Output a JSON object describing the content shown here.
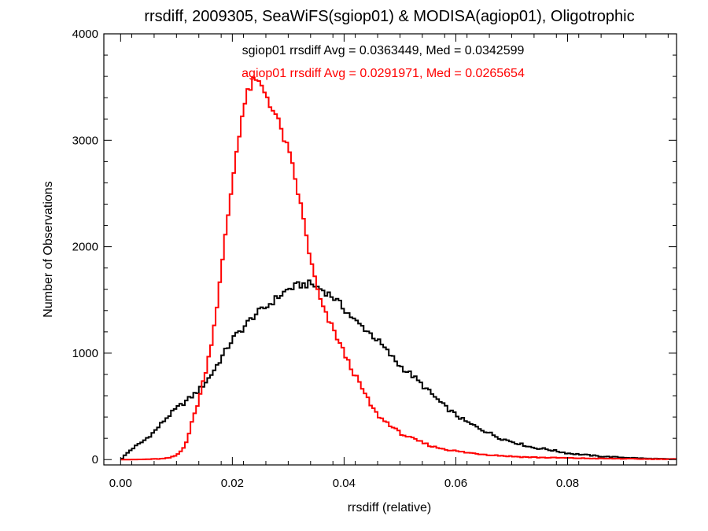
{
  "chart_data": {
    "type": "line",
    "title": "rrsdiff, 2009305, SeaWiFS(sgiop01) & MODISA(agiop01), Oligotrophic",
    "xlabel": "rrsdiff (relative)",
    "ylabel": "Number of Observations",
    "xlim": [
      -0.003,
      0.0995
    ],
    "ylim": [
      -50,
      4000
    ],
    "x_ticks": [
      0.0,
      0.02,
      0.04,
      0.06,
      0.08
    ],
    "x_tick_labels": [
      "0.00",
      "0.02",
      "0.04",
      "0.06",
      "0.08"
    ],
    "y_ticks": [
      0,
      1000,
      2000,
      3000,
      4000
    ],
    "y_tick_labels": [
      "0",
      "1000",
      "2000",
      "3000",
      "4000"
    ],
    "bin_width": 0.0005,
    "annotations": [
      {
        "text": "sgiop01 rrsdiff Avg = 0.0363449, Med = 0.0342599",
        "color": "#000000"
      },
      {
        "text": "agiop01 rrsdiff Avg = 0.0291971, Med = 0.0265654",
        "color": "#ff0000"
      }
    ],
    "series": [
      {
        "name": "sgiop01",
        "color": "#000000",
        "points": [
          [
            0.0,
            0
          ],
          [
            0.002,
            100
          ],
          [
            0.004,
            170
          ],
          [
            0.006,
            260
          ],
          [
            0.008,
            380
          ],
          [
            0.01,
            480
          ],
          [
            0.012,
            560
          ],
          [
            0.014,
            650
          ],
          [
            0.016,
            780
          ],
          [
            0.018,
            950
          ],
          [
            0.02,
            1130
          ],
          [
            0.022,
            1240
          ],
          [
            0.024,
            1360
          ],
          [
            0.026,
            1430
          ],
          [
            0.028,
            1520
          ],
          [
            0.03,
            1600
          ],
          [
            0.032,
            1640
          ],
          [
            0.034,
            1650
          ],
          [
            0.036,
            1600
          ],
          [
            0.038,
            1530
          ],
          [
            0.04,
            1420
          ],
          [
            0.042,
            1300
          ],
          [
            0.044,
            1220
          ],
          [
            0.046,
            1120
          ],
          [
            0.048,
            1000
          ],
          [
            0.05,
            880
          ],
          [
            0.052,
            800
          ],
          [
            0.054,
            700
          ],
          [
            0.056,
            600
          ],
          [
            0.058,
            500
          ],
          [
            0.06,
            420
          ],
          [
            0.062,
            350
          ],
          [
            0.064,
            300
          ],
          [
            0.066,
            250
          ],
          [
            0.068,
            200
          ],
          [
            0.07,
            170
          ],
          [
            0.072,
            140
          ],
          [
            0.074,
            110
          ],
          [
            0.076,
            100
          ],
          [
            0.078,
            80
          ],
          [
            0.08,
            60
          ],
          [
            0.082,
            50
          ],
          [
            0.084,
            40
          ],
          [
            0.086,
            30
          ],
          [
            0.088,
            25
          ],
          [
            0.09,
            20
          ],
          [
            0.092,
            15
          ],
          [
            0.094,
            10
          ],
          [
            0.096,
            8
          ],
          [
            0.098,
            5
          ]
        ]
      },
      {
        "name": "agiop01",
        "color": "#ff0000",
        "points": [
          [
            0.0,
            0
          ],
          [
            0.002,
            0
          ],
          [
            0.004,
            2
          ],
          [
            0.006,
            5
          ],
          [
            0.008,
            10
          ],
          [
            0.009,
            20
          ],
          [
            0.01,
            40
          ],
          [
            0.011,
            90
          ],
          [
            0.012,
            200
          ],
          [
            0.013,
            390
          ],
          [
            0.014,
            560
          ],
          [
            0.015,
            780
          ],
          [
            0.016,
            1020
          ],
          [
            0.017,
            1350
          ],
          [
            0.018,
            1750
          ],
          [
            0.019,
            2200
          ],
          [
            0.02,
            2600
          ],
          [
            0.021,
            3000
          ],
          [
            0.022,
            3300
          ],
          [
            0.023,
            3480
          ],
          [
            0.024,
            3560
          ],
          [
            0.025,
            3520
          ],
          [
            0.026,
            3440
          ],
          [
            0.027,
            3320
          ],
          [
            0.028,
            3200
          ],
          [
            0.029,
            3060
          ],
          [
            0.03,
            2900
          ],
          [
            0.031,
            2700
          ],
          [
            0.032,
            2450
          ],
          [
            0.033,
            2180
          ],
          [
            0.034,
            1880
          ],
          [
            0.035,
            1640
          ],
          [
            0.036,
            1450
          ],
          [
            0.037,
            1330
          ],
          [
            0.038,
            1230
          ],
          [
            0.039,
            1120
          ],
          [
            0.04,
            1000
          ],
          [
            0.041,
            890
          ],
          [
            0.042,
            790
          ],
          [
            0.043,
            690
          ],
          [
            0.044,
            590
          ],
          [
            0.045,
            490
          ],
          [
            0.046,
            420
          ],
          [
            0.047,
            370
          ],
          [
            0.048,
            340
          ],
          [
            0.049,
            290
          ],
          [
            0.05,
            250
          ],
          [
            0.052,
            200
          ],
          [
            0.054,
            160
          ],
          [
            0.056,
            120
          ],
          [
            0.058,
            100
          ],
          [
            0.06,
            80
          ],
          [
            0.062,
            65
          ],
          [
            0.064,
            55
          ],
          [
            0.066,
            45
          ],
          [
            0.068,
            38
          ],
          [
            0.07,
            30
          ],
          [
            0.072,
            25
          ],
          [
            0.075,
            20
          ],
          [
            0.08,
            15
          ],
          [
            0.085,
            10
          ],
          [
            0.09,
            8
          ],
          [
            0.095,
            5
          ],
          [
            0.098,
            5
          ]
        ]
      }
    ]
  }
}
